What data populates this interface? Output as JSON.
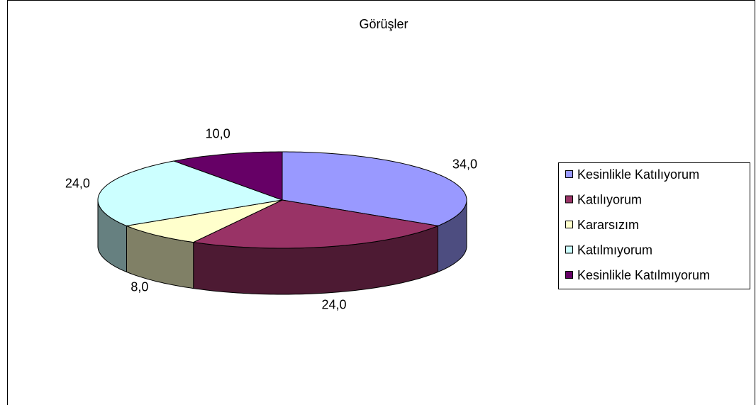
{
  "chart_data": {
    "type": "pie",
    "title": "Görüşler",
    "categories": [
      "Kesinlikle Katılıyorum",
      "Katılıyorum",
      "Kararsızım",
      "Katılmıyorum",
      "Kesinlikle Katılmıyorum"
    ],
    "values": [
      34,
      24,
      8,
      24,
      10
    ],
    "value_labels": [
      "34,0",
      "24,0",
      "8,0",
      "24,0",
      "10,0"
    ],
    "colors": [
      "#9999ff",
      "#993366",
      "#ffffcc",
      "#ccffff",
      "#660066"
    ],
    "legend": "right"
  }
}
